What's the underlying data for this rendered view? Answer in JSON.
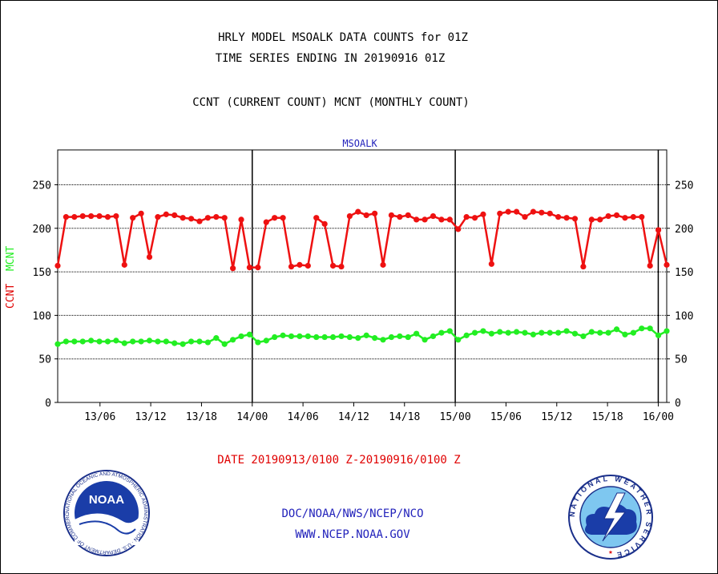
{
  "header": {
    "title_line1": "HRLY MODEL MSOALK DATA COUNTS for 01Z",
    "title_line2": "TIME SERIES ENDING IN 20190916 01Z",
    "subtitle": "CCNT (CURRENT COUNT) MCNT (MONTHLY COUNT)",
    "plot_label": "MSOALK"
  },
  "axis": {
    "ylabel_ccnt": "CCNT",
    "ylabel_mcnt": "MCNT",
    "xlabel": "DATE 20190913/0100 Z-20190916/0100 Z"
  },
  "footer": {
    "org": "DOC/NOAA/NWS/NCEP/NCO",
    "url": "WWW.NCEP.NOAA.GOV"
  },
  "logos": {
    "left_icon": "noaa-logo",
    "left_text": "NOAA",
    "left_ring": "NATIONAL OCEANIC AND ATMOSPHERIC ADMINISTRATION · U.S. DEPARTMENT OF COMMERCE",
    "right_icon": "national-weather-service-logo",
    "right_ring": "NATIONAL WEATHER SERVICE"
  },
  "colors": {
    "ccnt": "#ee1111",
    "mcnt": "#22ee22",
    "title_blue": "#2222bb",
    "label_red": "#e00000"
  },
  "chart_data": {
    "type": "line",
    "title": "HRLY MODEL MSOALK DATA COUNTS for 01Z",
    "xlabel": "DATE 20190913/0100 Z-20190916/0100 Z",
    "ylabel": "CCNT MCNT",
    "ylim": [
      0,
      290
    ],
    "yticks": [
      0,
      50,
      100,
      150,
      200,
      250
    ],
    "x_hours_range": [
      1,
      73
    ],
    "xticks": [
      {
        "hour": 6,
        "label": "13/06"
      },
      {
        "hour": 12,
        "label": "13/12"
      },
      {
        "hour": 18,
        "label": "13/18"
      },
      {
        "hour": 24,
        "label": "14/00"
      },
      {
        "hour": 30,
        "label": "14/06"
      },
      {
        "hour": 36,
        "label": "14/12"
      },
      {
        "hour": 42,
        "label": "14/18"
      },
      {
        "hour": 48,
        "label": "15/00"
      },
      {
        "hour": 54,
        "label": "15/06"
      },
      {
        "hour": 60,
        "label": "15/12"
      },
      {
        "hour": 66,
        "label": "15/18"
      },
      {
        "hour": 72,
        "label": "16/00"
      }
    ],
    "day_lines_hours": [
      24,
      48,
      72
    ],
    "grid": true,
    "series": [
      {
        "name": "CCNT",
        "color": "#ee1111",
        "values": [
          157,
          213,
          213,
          214,
          214,
          214,
          213,
          214,
          158,
          212,
          217,
          167,
          213,
          216,
          215,
          212,
          211,
          208,
          212,
          213,
          212,
          154,
          210,
          155,
          155,
          207,
          212,
          212,
          156,
          158,
          157,
          212,
          205,
          157,
          156,
          214,
          219,
          215,
          217,
          158,
          215,
          213,
          215,
          210,
          210,
          214,
          210,
          210,
          199,
          213,
          212,
          216,
          159,
          217,
          219,
          219,
          213,
          219,
          218,
          217,
          213,
          212,
          211,
          156,
          210,
          210,
          214,
          215,
          212,
          213,
          213,
          157,
          198,
          158
        ]
      },
      {
        "name": "MCNT",
        "color": "#22ee22",
        "values": [
          67,
          70,
          70,
          70,
          71,
          70,
          70,
          71,
          68,
          70,
          70,
          71,
          70,
          70,
          68,
          67,
          70,
          70,
          69,
          74,
          67,
          72,
          76,
          78,
          69,
          71,
          75,
          77,
          76,
          76,
          76,
          75,
          75,
          75,
          76,
          75,
          74,
          77,
          74,
          72,
          75,
          76,
          75,
          79,
          72,
          76,
          80,
          82,
          72,
          77,
          80,
          82,
          79,
          81,
          80,
          81,
          80,
          78,
          80,
          80,
          80,
          82,
          79,
          76,
          81,
          80,
          80,
          84,
          78,
          80,
          85,
          85,
          77,
          82
        ]
      }
    ]
  }
}
